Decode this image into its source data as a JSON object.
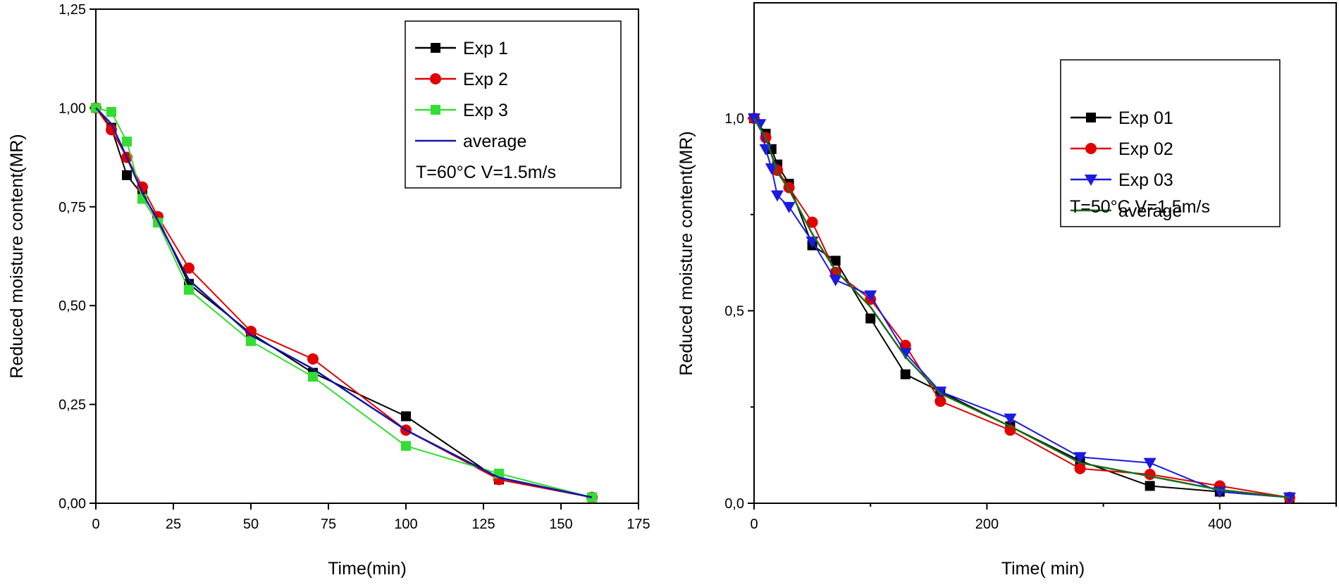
{
  "charts": [
    {
      "type": "line",
      "xlabel": "Time(min)",
      "ylabel": "Reduced moisture content(MR)",
      "xlim": [
        0,
        175
      ],
      "ylim": [
        0,
        1.25
      ],
      "xticks": [
        0,
        25,
        50,
        75,
        100,
        125,
        150,
        175
      ],
      "xtick_labels": [
        "0",
        "25",
        "50",
        "75",
        "100",
        "125",
        "150",
        "175"
      ],
      "yticks": [
        0,
        0.25,
        0.5,
        0.75,
        1.0,
        1.25
      ],
      "ytick_labels": [
        "0,00",
        "0,25",
        "0,50",
        "0,75",
        "1,00",
        "1,25"
      ],
      "annotation": "T=60°C   V=1.5m/s",
      "legend_position": "top-right",
      "series": [
        {
          "name": "Exp 1",
          "color": "#000000",
          "marker": "square",
          "x": [
            0,
            5,
            10,
            15,
            20,
            30,
            50,
            70,
            100,
            130,
            160
          ],
          "y": [
            1.0,
            0.95,
            0.83,
            0.78,
            0.72,
            0.555,
            0.43,
            0.33,
            0.22,
            0.06,
            0.015
          ]
        },
        {
          "name": "Exp 2",
          "color": "#e00000",
          "marker": "circle",
          "x": [
            0,
            5,
            10,
            15,
            20,
            30,
            50,
            70,
            100,
            130,
            160
          ],
          "y": [
            1.0,
            0.945,
            0.875,
            0.8,
            0.725,
            0.595,
            0.435,
            0.365,
            0.185,
            0.06,
            0.015
          ]
        },
        {
          "name": "Exp 3",
          "color": "#33dd33",
          "marker": "square",
          "x": [
            0,
            5,
            10,
            15,
            20,
            30,
            50,
            70,
            100,
            130,
            160
          ],
          "y": [
            1.0,
            0.99,
            0.915,
            0.77,
            0.71,
            0.54,
            0.41,
            0.32,
            0.145,
            0.075,
            0.015
          ]
        },
        {
          "name": "average",
          "color": "#1414aa",
          "marker": "none",
          "x": [
            0,
            5,
            10,
            15,
            20,
            30,
            50,
            70,
            100,
            130,
            160
          ],
          "y": [
            1.0,
            0.96,
            0.875,
            0.785,
            0.715,
            0.565,
            0.425,
            0.34,
            0.185,
            0.065,
            0.015
          ]
        }
      ]
    },
    {
      "type": "line",
      "xlabel": "Time( min)",
      "ylabel": "Reduced moisture content(MR)",
      "xlim": [
        0,
        500
      ],
      "ylim": [
        0,
        1.3
      ],
      "xticks": [
        0,
        200,
        400
      ],
      "xtick_labels": [
        "0",
        "200",
        "400"
      ],
      "yticks": [
        0,
        0.5,
        1.0
      ],
      "ytick_labels": [
        "0,0",
        "0,5",
        "1,0"
      ],
      "annotation": "T=50°C   V=1.5m/s",
      "legend_position": "top-right",
      "series": [
        {
          "name": "Exp 01",
          "color": "#000000",
          "marker": "square",
          "x": [
            0,
            10,
            15,
            20,
            30,
            50,
            70,
            100,
            130,
            160,
            220,
            280,
            340,
            400,
            460
          ],
          "y": [
            1.0,
            0.96,
            0.92,
            0.88,
            0.83,
            0.67,
            0.63,
            0.48,
            0.335,
            0.29,
            0.2,
            0.11,
            0.045,
            0.03,
            0.015
          ]
        },
        {
          "name": "Exp 02",
          "color": "#e00000",
          "marker": "circle",
          "x": [
            0,
            10,
            20,
            30,
            50,
            70,
            100,
            130,
            160,
            220,
            280,
            340,
            400,
            460
          ],
          "y": [
            1.0,
            0.95,
            0.865,
            0.82,
            0.73,
            0.6,
            0.53,
            0.41,
            0.265,
            0.19,
            0.09,
            0.075,
            0.045,
            0.015
          ]
        },
        {
          "name": "Exp 03",
          "color": "#1a1ae0",
          "marker": "triangle-down",
          "x": [
            0,
            5,
            10,
            15,
            20,
            30,
            50,
            70,
            100,
            130,
            160,
            220,
            280,
            340,
            400,
            460
          ],
          "y": [
            1.0,
            0.985,
            0.92,
            0.87,
            0.8,
            0.77,
            0.68,
            0.58,
            0.54,
            0.39,
            0.29,
            0.22,
            0.12,
            0.105,
            0.03,
            0.015
          ]
        },
        {
          "name": "average",
          "color": "#1a6e1a",
          "marker": "none",
          "x": [
            0,
            10,
            20,
            30,
            50,
            70,
            100,
            130,
            160,
            220,
            280,
            340,
            400,
            460
          ],
          "y": [
            1.0,
            0.95,
            0.86,
            0.815,
            0.7,
            0.605,
            0.51,
            0.38,
            0.285,
            0.2,
            0.105,
            0.07,
            0.035,
            0.015
          ]
        }
      ]
    }
  ]
}
